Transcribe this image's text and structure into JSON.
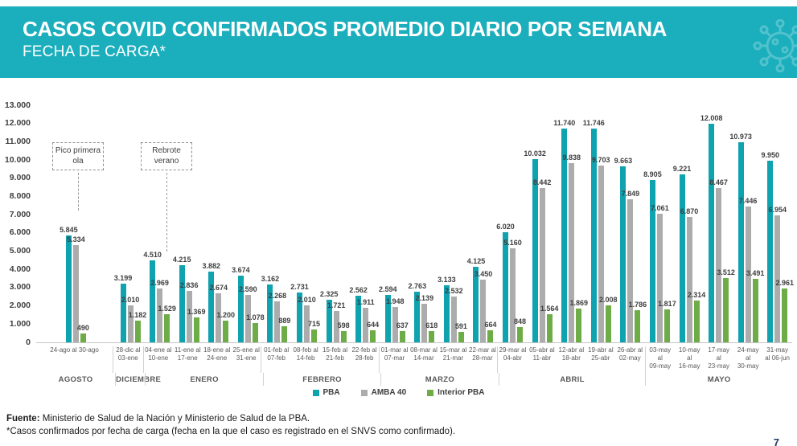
{
  "header": {
    "title": "CASOS COVID CONFIRMADOS PROMEDIO DIARIO POR SEMANA",
    "subtitle": "FECHA DE CARGA*",
    "accent_color": "#1BAEBC"
  },
  "chart_data": {
    "type": "bar",
    "title": "CASOS COVID CONFIRMADOS PROMEDIO DIARIO POR SEMANA - FECHA DE CARGA",
    "ylim": [
      0,
      13000
    ],
    "ytick_step": 1000,
    "grid": false,
    "legend_position": "bottom-center",
    "categories": [
      "24-ago al 30-ago",
      "28-dic al 03-ene",
      "04-ene al 10-ene",
      "11-ene al 17-ene",
      "18-ene al 24-ene",
      "25-ene al 31-ene",
      "01-feb al 07-feb",
      "08-feb al 14-feb",
      "15-feb al 21-feb",
      "22-feb al 28-feb",
      "01-mar al 07-mar",
      "08-mar al 14-mar",
      "15-mar al 21-mar",
      "22-mar al 28-mar",
      "29-mar al 04-abr",
      "05-abr al 11-abr",
      "12-abr al 18-abr",
      "19-abr al 25-abr",
      "26-abr al 02-may",
      "03-may al 09-may",
      "10-may al 16-may",
      "17-may al 23-may",
      "24-may al 30-may",
      "31-may al 06-jun"
    ],
    "month_groups": [
      {
        "label": "AGOSTO",
        "span": 1
      },
      {
        "label": "DICIEMBRE",
        "span": 1
      },
      {
        "label": "ENERO",
        "span": 4
      },
      {
        "label": "FEBRERO",
        "span": 4
      },
      {
        "label": "MARZO",
        "span": 4
      },
      {
        "label": "ABRIL",
        "span": 5
      },
      {
        "label": "MAYO",
        "span": 5
      }
    ],
    "series": [
      {
        "name": "PBA",
        "color": "#0FA2AF",
        "values": [
          5845,
          3199,
          4510,
          4215,
          3882,
          3674,
          3162,
          2731,
          2325,
          2562,
          2594,
          2763,
          3133,
          4125,
          6020,
          10032,
          11740,
          11746,
          9663,
          8905,
          9221,
          12008,
          10973,
          9950
        ]
      },
      {
        "name": "AMBA 40",
        "color": "#ACACAC",
        "values": [
          5334,
          2010,
          2969,
          2836,
          2674,
          2590,
          2268,
          2010,
          1721,
          1911,
          1948,
          2139,
          2532,
          3450,
          5160,
          8442,
          9838,
          9703,
          7849,
          7061,
          6870,
          8467,
          7446,
          6954
        ]
      },
      {
        "name": "Interior PBA",
        "color": "#6EAC47",
        "values": [
          490,
          1182,
          1529,
          1369,
          1200,
          1078,
          889,
          715,
          598,
          644,
          637,
          618,
          591,
          664,
          848,
          1564,
          1869,
          2008,
          1786,
          1817,
          2314,
          3512,
          3491,
          2961
        ]
      }
    ],
    "annotations": [
      {
        "text": "Pico primera ola"
      },
      {
        "text": "Rebrote verano"
      }
    ]
  },
  "footer": {
    "source_label": "Fuente:",
    "source_text": " Ministerio de Salud de la Nación y Ministerio de Salud de la PBA.",
    "note": "*Casos confirmados por fecha de carga (fecha en la que el caso es registrado en el SNVS como confirmado)."
  },
  "page_number": "7"
}
